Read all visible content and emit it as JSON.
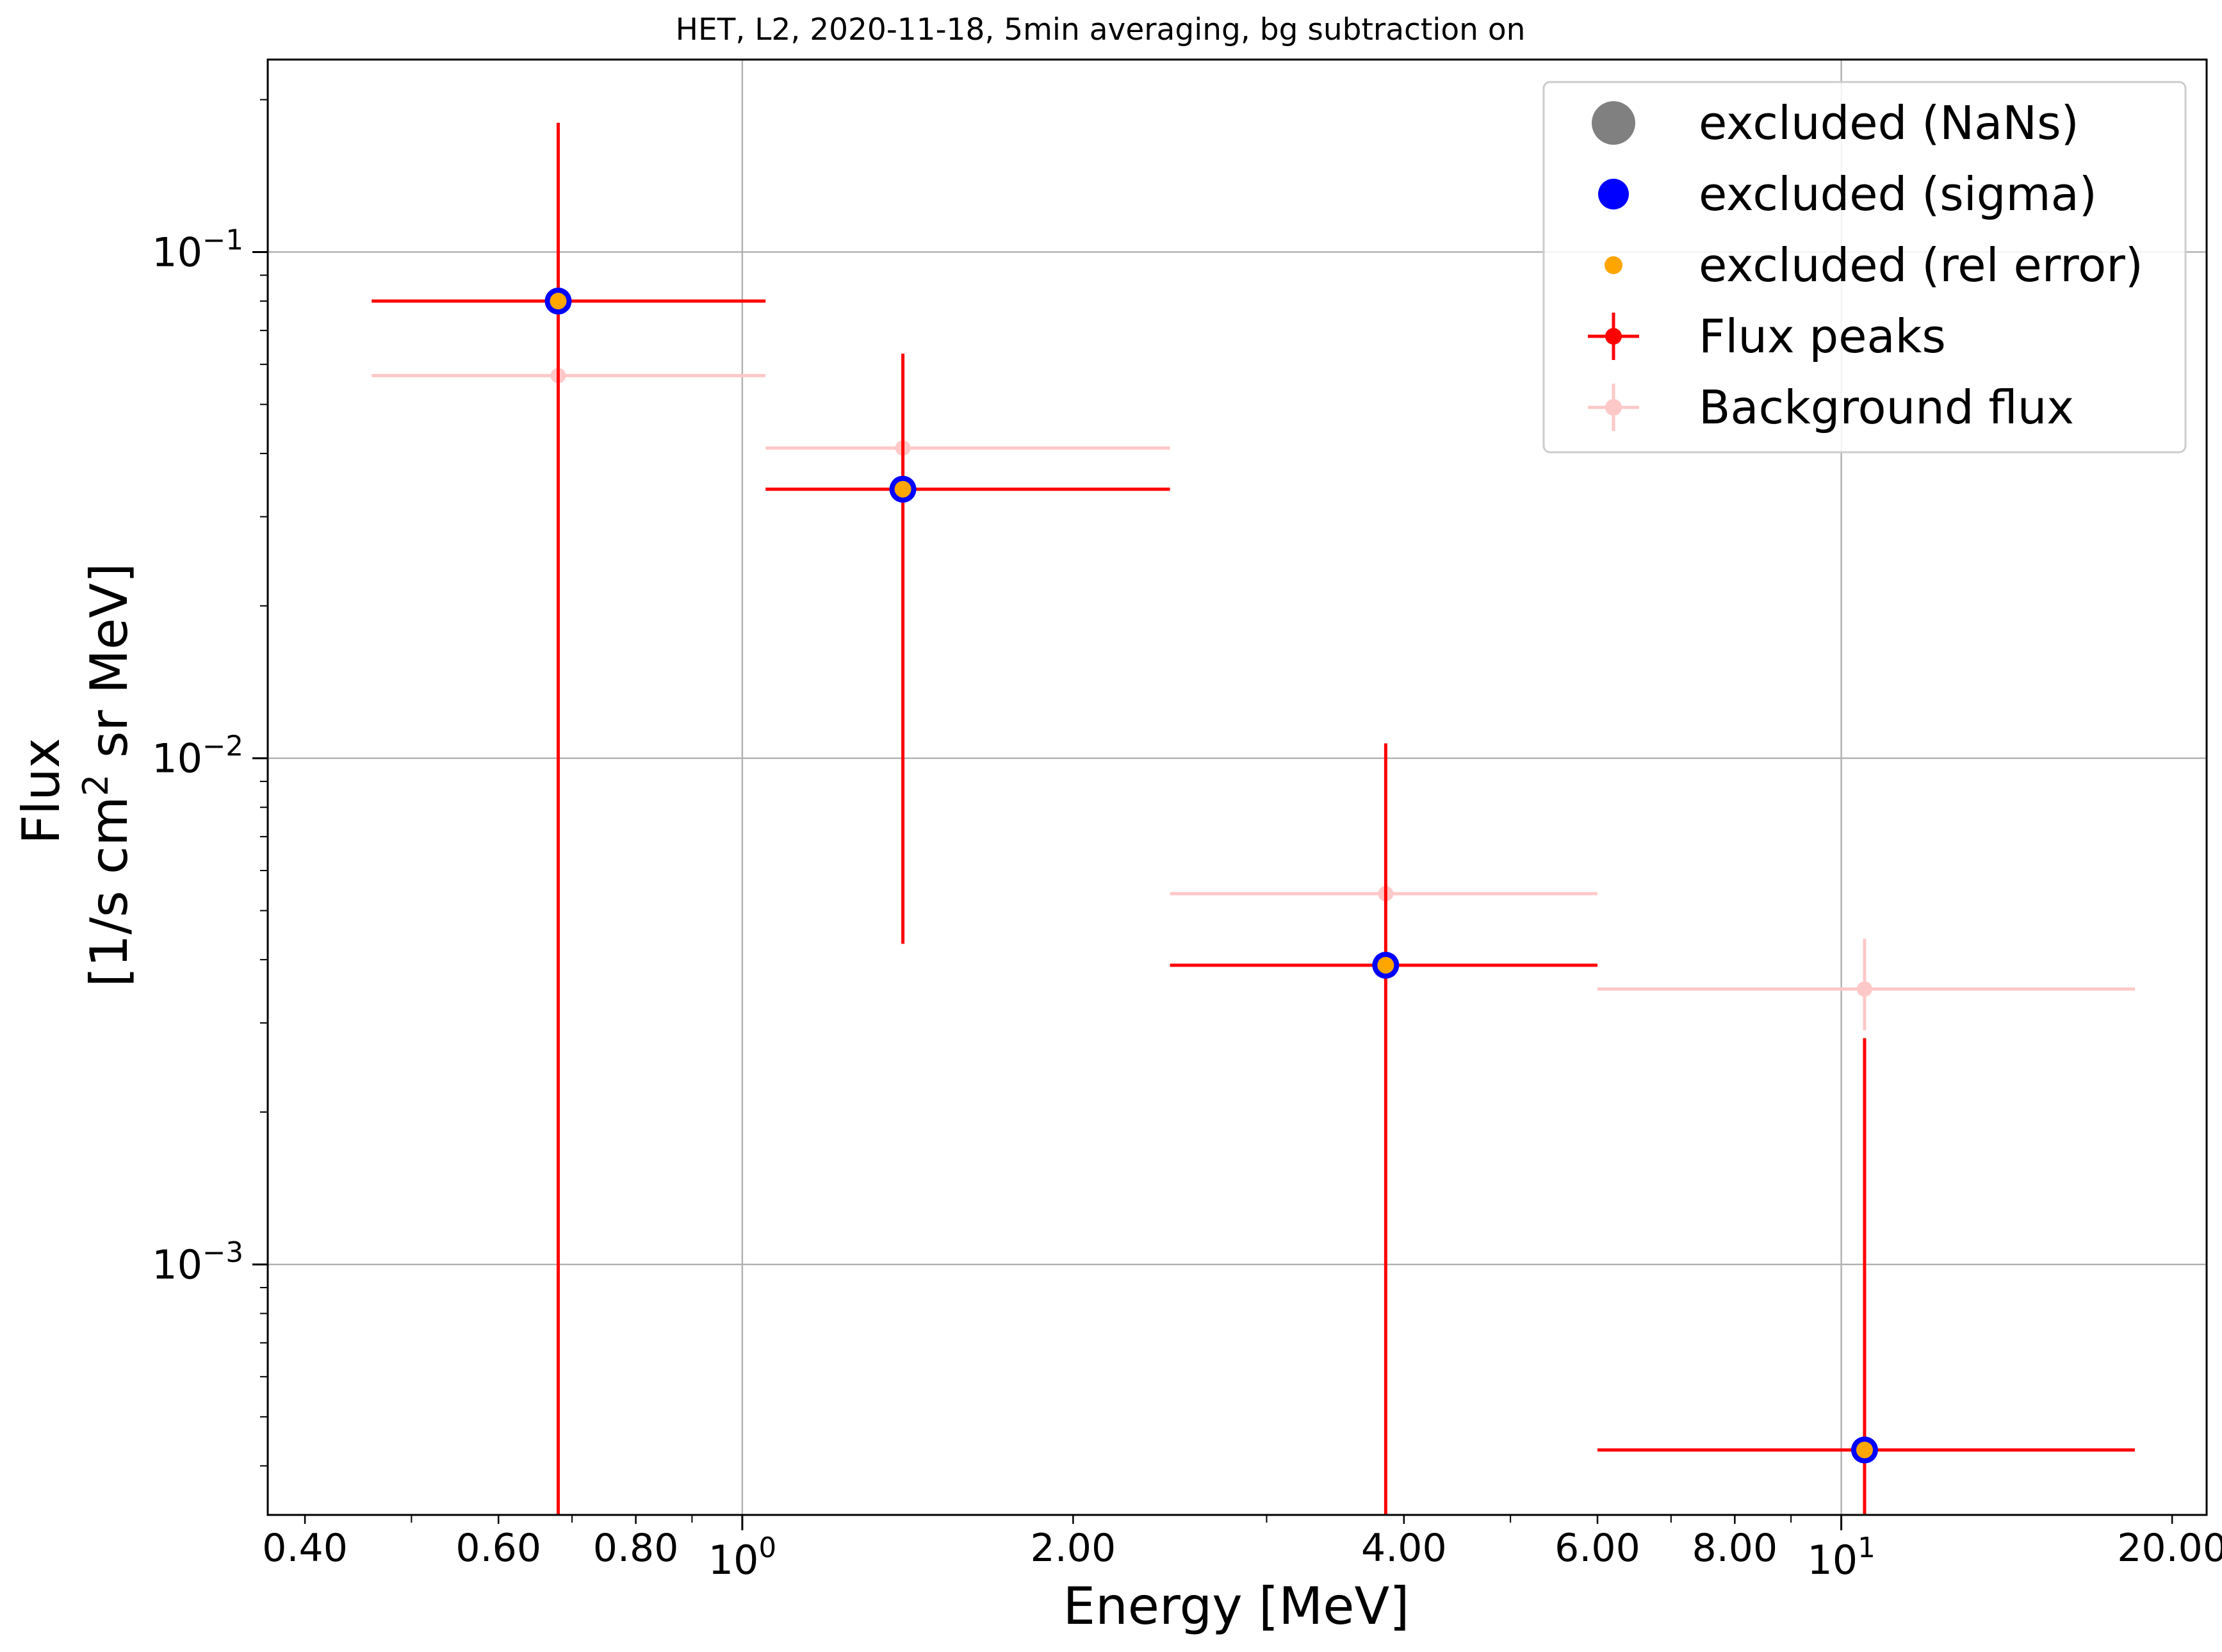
{
  "chart_data": {
    "type": "scatter",
    "title": "HET, L2, 2020-11-18, 5min averaging, bg subtraction on",
    "xlabel": "Energy [MeV]",
    "ylabel_line1": "Flux",
    "ylabel_line2": "[1/s cm",
    "ylabel_sup": "2",
    "ylabel_line2_tail": " sr MeV]",
    "xscale": "log",
    "yscale": "log",
    "xlim": [
      0.37,
      21.5
    ],
    "ylim": [
      0.00032,
      0.24
    ],
    "grid": true,
    "legend_position": "top-right",
    "x_ticks": [
      {
        "value": 0.4,
        "label": "0.40"
      },
      {
        "value": 0.6,
        "label": "0.60"
      },
      {
        "value": 0.8,
        "label": "0.80"
      },
      {
        "value": 2.0,
        "label": "2.00"
      },
      {
        "value": 4.0,
        "label": "4.00"
      },
      {
        "value": 6.0,
        "label": "6.00"
      },
      {
        "value": 8.0,
        "label": "8.00"
      },
      {
        "value": 20.0,
        "label": "20.00"
      }
    ],
    "x_major_ticks": [
      {
        "value": 1,
        "base": "10",
        "exp": "0"
      },
      {
        "value": 10,
        "base": "10",
        "exp": "1"
      }
    ],
    "y_major_ticks": [
      {
        "value": 0.1,
        "base": "10",
        "exp": "−1"
      },
      {
        "value": 0.01,
        "base": "10",
        "exp": "−2"
      },
      {
        "value": 0.001,
        "base": "10",
        "exp": "−3"
      }
    ],
    "series": [
      {
        "name": "Flux peaks",
        "color": "#ff0000",
        "points": [
          {
            "x": 0.68,
            "y": 0.08,
            "xlo": 0.46,
            "xhi": 1.05,
            "ylo": 0.0002,
            "yhi": 0.18
          },
          {
            "x": 1.4,
            "y": 0.034,
            "xlo": 1.05,
            "xhi": 2.45,
            "ylo": 0.0043,
            "yhi": 0.063
          },
          {
            "x": 3.85,
            "y": 0.0039,
            "xlo": 2.45,
            "xhi": 6.0,
            "ylo": 0.0002,
            "yhi": 0.0107
          },
          {
            "x": 10.5,
            "y": 0.00043,
            "xlo": 6.0,
            "xhi": 18.5,
            "ylo": 0.0002,
            "yhi": 0.0028
          }
        ]
      },
      {
        "name": "Background flux",
        "color": "#ffc8c8",
        "points": [
          {
            "x": 0.68,
            "y": 0.057,
            "xlo": 0.46,
            "xhi": 1.05,
            "ylo": 0.057,
            "yhi": 0.057
          },
          {
            "x": 1.4,
            "y": 0.041,
            "xlo": 1.05,
            "xhi": 2.45,
            "ylo": 0.041,
            "yhi": 0.041
          },
          {
            "x": 3.85,
            "y": 0.0054,
            "xlo": 2.45,
            "xhi": 6.0,
            "ylo": 0.0054,
            "yhi": 0.0054
          },
          {
            "x": 10.5,
            "y": 0.0035,
            "xlo": 6.0,
            "xhi": 18.5,
            "ylo": 0.0029,
            "yhi": 0.0044
          }
        ]
      },
      {
        "name": "excluded (NaNs)",
        "color": "#808080",
        "points": []
      },
      {
        "name": "excluded (sigma)",
        "color": "#0000ff",
        "points": [
          {
            "x": 0.68,
            "y": 0.08
          },
          {
            "x": 1.4,
            "y": 0.034
          },
          {
            "x": 3.85,
            "y": 0.0039
          },
          {
            "x": 10.5,
            "y": 0.00043
          }
        ]
      },
      {
        "name": "excluded (rel error)",
        "color": "#ffa500",
        "points": [
          {
            "x": 0.68,
            "y": 0.08
          },
          {
            "x": 1.4,
            "y": 0.034
          },
          {
            "x": 3.85,
            "y": 0.0039
          },
          {
            "x": 10.5,
            "y": 0.00043
          }
        ]
      }
    ],
    "legend": [
      {
        "label": "excluded (NaNs)",
        "marker": "big-dot",
        "color": "#808080"
      },
      {
        "label": "excluded (sigma)",
        "marker": "dot",
        "color": "#0000ff"
      },
      {
        "label": "excluded (rel error)",
        "marker": "small-dot",
        "color": "#ffa500"
      },
      {
        "label": "Flux peaks",
        "marker": "errorbar",
        "color": "#ff0000"
      },
      {
        "label": "Background flux",
        "marker": "errorbar-faint",
        "color": "#ffc8c8"
      }
    ]
  }
}
